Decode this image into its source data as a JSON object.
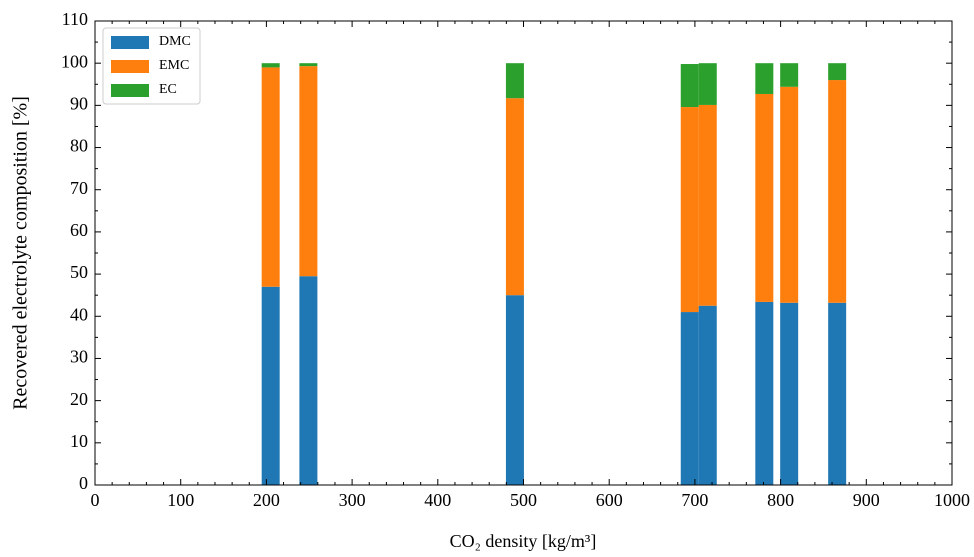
{
  "chart_data": {
    "type": "stacked_bar",
    "xlabel": "CO₂ density [kg/m³]",
    "ylabel": "Recovered electrolyte composition [%]",
    "x": [
      205,
      249,
      490,
      694,
      715,
      781,
      810,
      866
    ],
    "series": [
      {
        "name": "DMC",
        "color": "#1f77b4",
        "values": [
          47,
          49.5,
          45,
          41,
          42.5,
          43.4,
          43.2,
          43.2
        ]
      },
      {
        "name": "EMC",
        "color": "#ff7f0e",
        "values": [
          52,
          49.8,
          46.7,
          48.6,
          47.6,
          49.3,
          51.2,
          52.8
        ]
      },
      {
        "name": "EC",
        "color": "#2ca02c",
        "values": [
          1,
          0.7,
          8.3,
          10.2,
          9.9,
          7.3,
          5.6,
          4
        ]
      }
    ],
    "xlim": [
      0,
      1000
    ],
    "xticks": [
      0,
      100,
      200,
      300,
      400,
      500,
      600,
      700,
      800,
      900,
      1000
    ],
    "ylim": [
      0,
      110
    ],
    "yticks": [
      0,
      10,
      20,
      30,
      40,
      50,
      60,
      70,
      80,
      90,
      100,
      110
    ],
    "legend": "upper left"
  }
}
